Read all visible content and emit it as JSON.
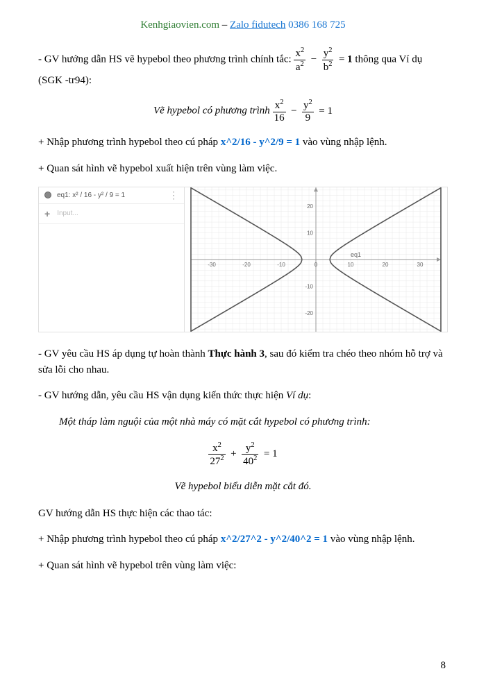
{
  "header": {
    "site": "Kenhgiaovien.com",
    "dash": " – ",
    "zalo": "Zalo fidutech",
    "phone": " 0386 168 725"
  },
  "para1": {
    "pre": "- GV hướng dẫn HS vẽ hypebol theo phương trình chính tắc: ",
    "post": " thông qua Ví dụ (SGK -tr94):",
    "eq": {
      "num1": "x",
      "den1": "a",
      "num2": "y",
      "den2": "b",
      "rhs": "1"
    }
  },
  "eq1": {
    "text_pre": "Vẽ hypebol có phương trình ",
    "num1": "x",
    "den1": "16",
    "num2": "y",
    "den2": "9",
    "rhs": "1"
  },
  "para2": {
    "pre": "+ Nhập phương trình hypebol theo cú pháp ",
    "code": "x^2/16 - y^2/9 = 1",
    "post": " vào vùng nhập lệnh."
  },
  "para3": "+ Quan sát hình vẽ hypebol xuất hiện trên vùng làm việc.",
  "gg": {
    "sidebar": {
      "eq_label": "eq1: x² / 16 - y² / 9 = 1",
      "input_placeholder": "Input..."
    },
    "graph": {
      "type": "hyperbola",
      "a": 4,
      "b": 3,
      "xlim": [
        -36,
        36
      ],
      "ylim": [
        -27,
        27
      ],
      "xtick_step": 10,
      "ytick_step": 10,
      "minor_step": 2,
      "axis_color": "#999999",
      "grid_color": "#e8e8e8",
      "curve_color": "#555555",
      "curve_width": 1.6,
      "background_color": "#ffffff",
      "label_text": "eq1",
      "label_color": "#666666",
      "tick_fontsize": 8,
      "xticks": [
        -30,
        -20,
        -10,
        0,
        10,
        20,
        30
      ],
      "yticks": [
        -20,
        -10,
        10,
        20
      ]
    }
  },
  "para4": {
    "pre": "- GV yêu cầu HS áp dụng tự hoàn thành ",
    "bold": "Thực hành 3",
    "post": ", sau đó kiểm tra chéo theo nhóm hỗ trợ và sửa lỗi cho nhau."
  },
  "para5": {
    "pre": "- GV hướng dẫn, yêu cầu HS vận dụng kiến thức thực hiện ",
    "italic": "Ví dụ",
    "post": ":"
  },
  "para6": "Một tháp làm nguội của một nhà máy có mặt cắt hypebol có phương trình:",
  "eq2": {
    "num1": "x",
    "den1": "27",
    "num2": "y",
    "den2": "40",
    "rhs": "1"
  },
  "para7": "Vẽ hypebol biểu diễn mặt cắt đó.",
  "para8": "GV hướng dẫn HS thực hiện các thao tác:",
  "para9": {
    "pre": "+ Nhập phương trình hypebol theo cú pháp ",
    "code": "x^2/27^2 - y^2/40^2 = 1",
    "post": " vào vùng nhập lệnh."
  },
  "para10": "+ Quan sát hình vẽ hypebol trên vùng làm việc:",
  "page_number": "8"
}
